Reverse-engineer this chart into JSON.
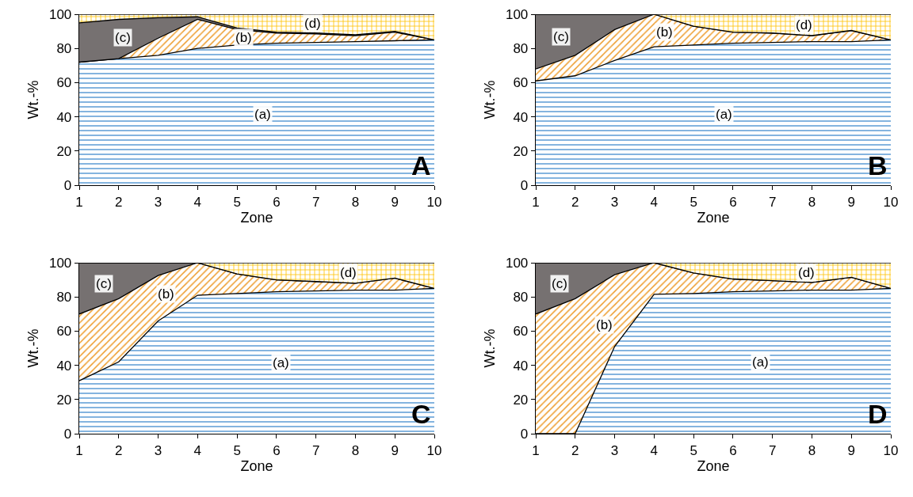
{
  "chart_data": [
    {
      "type": "area",
      "stacked": true,
      "xlabel": "Zone",
      "ylabel": "Wt.-%",
      "x": [
        1,
        2,
        3,
        4,
        5,
        6,
        7,
        8,
        9,
        10
      ],
      "xlim": [
        1,
        10
      ],
      "xticks": [
        1,
        2,
        3,
        4,
        5,
        6,
        7,
        8,
        9,
        10
      ],
      "ylim": [
        0,
        100
      ],
      "yticks": [
        0,
        20,
        40,
        60,
        80,
        100
      ],
      "legend": false,
      "annotations": [
        "A"
      ],
      "series": [
        {
          "name": "(a)",
          "color": "#5b9bd5",
          "values": [
            72,
            74,
            76,
            80,
            82,
            83,
            83.5,
            84,
            84.5,
            85
          ]
        },
        {
          "name": "(b)",
          "color": "#ed9b2a",
          "values": [
            0,
            0,
            10,
            17,
            9,
            6,
            5,
            3.5,
            5,
            0
          ]
        },
        {
          "name": "(c)",
          "color": "#767171",
          "values": [
            23,
            23,
            12,
            1.5,
            1,
            0.5,
            0.5,
            0.5,
            0.5,
            0
          ]
        },
        {
          "name": "(d)",
          "color": "#ffc000",
          "values": [
            5,
            3,
            2,
            1.5,
            8,
            10.5,
            11,
            12,
            10,
            15
          ]
        }
      ]
    },
    {
      "type": "area",
      "stacked": true,
      "xlabel": "Zone",
      "ylabel": "Wt.-%",
      "x": [
        1,
        2,
        3,
        4,
        5,
        6,
        7,
        8,
        9,
        10
      ],
      "xlim": [
        1,
        10
      ],
      "xticks": [
        1,
        2,
        3,
        4,
        5,
        6,
        7,
        8,
        9,
        10
      ],
      "ylim": [
        0,
        100
      ],
      "yticks": [
        0,
        20,
        40,
        60,
        80,
        100
      ],
      "legend": false,
      "annotations": [
        "B"
      ],
      "series": [
        {
          "name": "(a)",
          "color": "#5b9bd5",
          "values": [
            61,
            64,
            73,
            81,
            82,
            83,
            83.5,
            84,
            84,
            85
          ]
        },
        {
          "name": "(b)",
          "color": "#ed9b2a",
          "values": [
            7,
            12,
            18,
            19,
            11,
            6.5,
            5.5,
            3.5,
            6.5,
            0
          ]
        },
        {
          "name": "(c)",
          "color": "#767171",
          "values": [
            32,
            24,
            9,
            0,
            0,
            0,
            0,
            0,
            0,
            0
          ]
        },
        {
          "name": "(d)",
          "color": "#ffc000",
          "values": [
            0,
            0,
            0,
            0,
            7,
            10.5,
            11,
            12.5,
            9.5,
            15
          ]
        }
      ]
    },
    {
      "type": "area",
      "stacked": true,
      "xlabel": "Zone",
      "ylabel": "Wt.-%",
      "x": [
        1,
        2,
        3,
        4,
        5,
        6,
        7,
        8,
        9,
        10
      ],
      "xlim": [
        1,
        10
      ],
      "xticks": [
        1,
        2,
        3,
        4,
        5,
        6,
        7,
        8,
        9,
        10
      ],
      "ylim": [
        0,
        100
      ],
      "yticks": [
        0,
        20,
        40,
        60,
        80,
        100
      ],
      "legend": false,
      "annotations": [
        "C"
      ],
      "series": [
        {
          "name": "(a)",
          "color": "#5b9bd5",
          "values": [
            31,
            42,
            66,
            81,
            82,
            83,
            83.5,
            84,
            84,
            85
          ]
        },
        {
          "name": "(b)",
          "color": "#ed9b2a",
          "values": [
            39,
            37,
            26.5,
            19,
            11.5,
            7,
            5.5,
            4,
            7,
            0
          ]
        },
        {
          "name": "(c)",
          "color": "#767171",
          "values": [
            30,
            21,
            7.5,
            0,
            0,
            0,
            0,
            0,
            0,
            0
          ]
        },
        {
          "name": "(d)",
          "color": "#ffc000",
          "values": [
            0,
            0,
            0,
            0,
            6.5,
            10,
            11,
            12,
            9,
            15
          ]
        }
      ]
    },
    {
      "type": "area",
      "stacked": true,
      "xlabel": "Zone",
      "ylabel": "Wt.-%",
      "x": [
        1,
        2,
        3,
        4,
        5,
        6,
        7,
        8,
        9,
        10
      ],
      "xlim": [
        1,
        10
      ],
      "xticks": [
        1,
        2,
        3,
        4,
        5,
        6,
        7,
        8,
        9,
        10
      ],
      "ylim": [
        0,
        100
      ],
      "yticks": [
        0,
        20,
        40,
        60,
        80,
        100
      ],
      "legend": false,
      "annotations": [
        "D"
      ],
      "series": [
        {
          "name": "(a)",
          "color": "#5b9bd5",
          "values": [
            0,
            0,
            51,
            81.5,
            82,
            83,
            83.5,
            84,
            84,
            85
          ]
        },
        {
          "name": "(b)",
          "color": "#ed9b2a",
          "values": [
            70,
            79,
            42,
            18.5,
            12,
            7.5,
            6,
            4.5,
            7.5,
            0
          ]
        },
        {
          "name": "(c)",
          "color": "#767171",
          "values": [
            30,
            21,
            7,
            0,
            0,
            0,
            0,
            0,
            0,
            0
          ]
        },
        {
          "name": "(d)",
          "color": "#ffc000",
          "values": [
            0,
            0,
            0,
            0,
            6,
            9.5,
            10.5,
            11.5,
            8.5,
            15
          ]
        }
      ]
    }
  ]
}
